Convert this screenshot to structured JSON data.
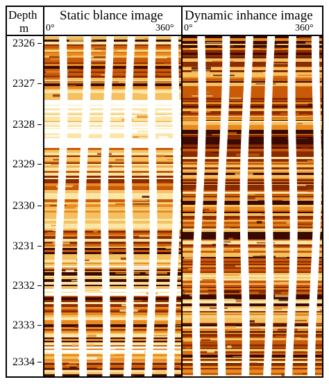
{
  "header": {
    "depth_title": "Depth",
    "depth_unit": "m",
    "static_title": "Static blance image",
    "dynamic_title": "Dynamic inhance image",
    "angle_start": "0°",
    "angle_end": "360°"
  },
  "depth_track": {
    "labels": [
      "2326",
      "2327",
      "2328",
      "2329",
      "2330",
      "3231",
      "2332",
      "2333",
      "2334"
    ]
  },
  "colors": {
    "dark": "#3a0a00",
    "deep": "#8a2a00",
    "mid": "#c85a08",
    "orange": "#e88a20",
    "light": "#f4c060",
    "pale": "#fbe6a8",
    "white": "#ffffff",
    "frame": "#000000"
  }
}
